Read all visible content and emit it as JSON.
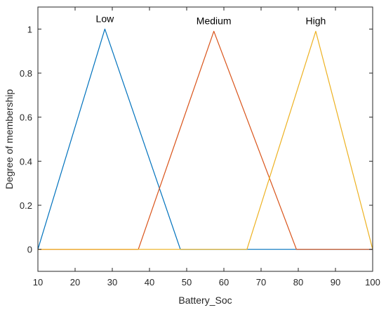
{
  "chart_data": {
    "type": "line",
    "title": "",
    "xlabel": "Battery_Soc",
    "ylabel": "Degree of membership",
    "xlim": [
      10,
      100
    ],
    "ylim": [
      -0.1,
      1.1
    ],
    "xticks": [
      "10",
      "20",
      "30",
      "40",
      "50",
      "60",
      "70",
      "80",
      "90",
      "100"
    ],
    "yticks": [
      "0",
      "0.2",
      "0.4",
      "0.6",
      "0.8",
      "1"
    ],
    "grid": false,
    "legend": "none",
    "series": [
      {
        "name": "Low",
        "color": "#0072BD",
        "x": [
          10,
          28,
          48.3,
          100
        ],
        "y": [
          0,
          1,
          0,
          0
        ]
      },
      {
        "name": "Medium",
        "color": "#D95319",
        "x": [
          10,
          37,
          57.3,
          79.5,
          100
        ],
        "y": [
          0,
          0,
          0.99,
          0,
          0
        ]
      },
      {
        "name": "High",
        "color": "#EDB120",
        "x": [
          10,
          66.2,
          84.7,
          100
        ],
        "y": [
          0,
          0,
          0.99,
          0
        ]
      }
    ]
  }
}
